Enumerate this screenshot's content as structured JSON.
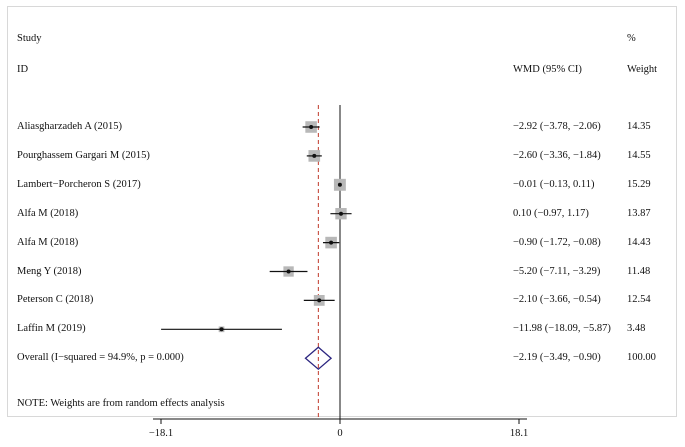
{
  "headers": {
    "study": "Study",
    "id": "ID",
    "effect": "WMD (95% CI)",
    "percent": "%",
    "weight": "Weight"
  },
  "note": "NOTE: Weights are from random effects analysis",
  "colors": {
    "box": "#b8b8b8",
    "line": "#111111",
    "reference": "#c0392b",
    "diamond": "#2b2580"
  },
  "chart_data": {
    "type": "forest",
    "xaxis": {
      "null_value": 0,
      "ticks": [
        -18.1,
        0,
        18.1
      ],
      "tick_labels": [
        "−18.1",
        "0",
        "18.1"
      ],
      "range": [
        -18.1,
        18.1
      ]
    },
    "studies": [
      {
        "label": "Aliasgharzadeh A (2015)",
        "wmd": -2.92,
        "lo": -3.78,
        "hi": -2.06,
        "ci_text": "−2.92 (−3.78, −2.06)",
        "weight": 14.35,
        "weight_text": "14.35"
      },
      {
        "label": "Pourghassem Gargari M (2015)",
        "wmd": -2.6,
        "lo": -3.36,
        "hi": -1.84,
        "ci_text": "−2.60 (−3.36, −1.84)",
        "weight": 14.55,
        "weight_text": "14.55"
      },
      {
        "label": "Lambert−Porcheron S (2017)",
        "wmd": -0.01,
        "lo": -0.13,
        "hi": 0.11,
        "ci_text": "−0.01 (−0.13, 0.11)",
        "weight": 15.29,
        "weight_text": "15.29"
      },
      {
        "label": "Alfa M (2018)",
        "wmd": 0.1,
        "lo": -0.97,
        "hi": 1.17,
        "ci_text": "0.10 (−0.97, 1.17)",
        "weight": 13.87,
        "weight_text": "13.87"
      },
      {
        "label": "Alfa M (2018)",
        "wmd": -0.9,
        "lo": -1.72,
        "hi": -0.08,
        "ci_text": "−0.90 (−1.72, −0.08)",
        "weight": 14.43,
        "weight_text": "14.43"
      },
      {
        "label": "Meng Y (2018)",
        "wmd": -5.2,
        "lo": -7.11,
        "hi": -3.29,
        "ci_text": "−5.20 (−7.11, −3.29)",
        "weight": 11.48,
        "weight_text": "11.48"
      },
      {
        "label": "Peterson C (2018)",
        "wmd": -2.1,
        "lo": -3.66,
        "hi": -0.54,
        "ci_text": "−2.10 (−3.66, −0.54)",
        "weight": 12.54,
        "weight_text": "12.54"
      },
      {
        "label": "Laffin M (2019)",
        "wmd": -11.98,
        "lo": -18.09,
        "hi": -5.87,
        "ci_text": "−11.98 (−18.09, −5.87)",
        "weight": 3.48,
        "weight_text": "3.48"
      }
    ],
    "overall": {
      "label": "Overall  (I−squared = 94.9%, p = 0.000)",
      "wmd": -2.19,
      "lo": -3.49,
      "hi": -0.9,
      "ci_text": "−2.19 (−3.49, −0.90)",
      "weight_text": "100.00"
    }
  }
}
